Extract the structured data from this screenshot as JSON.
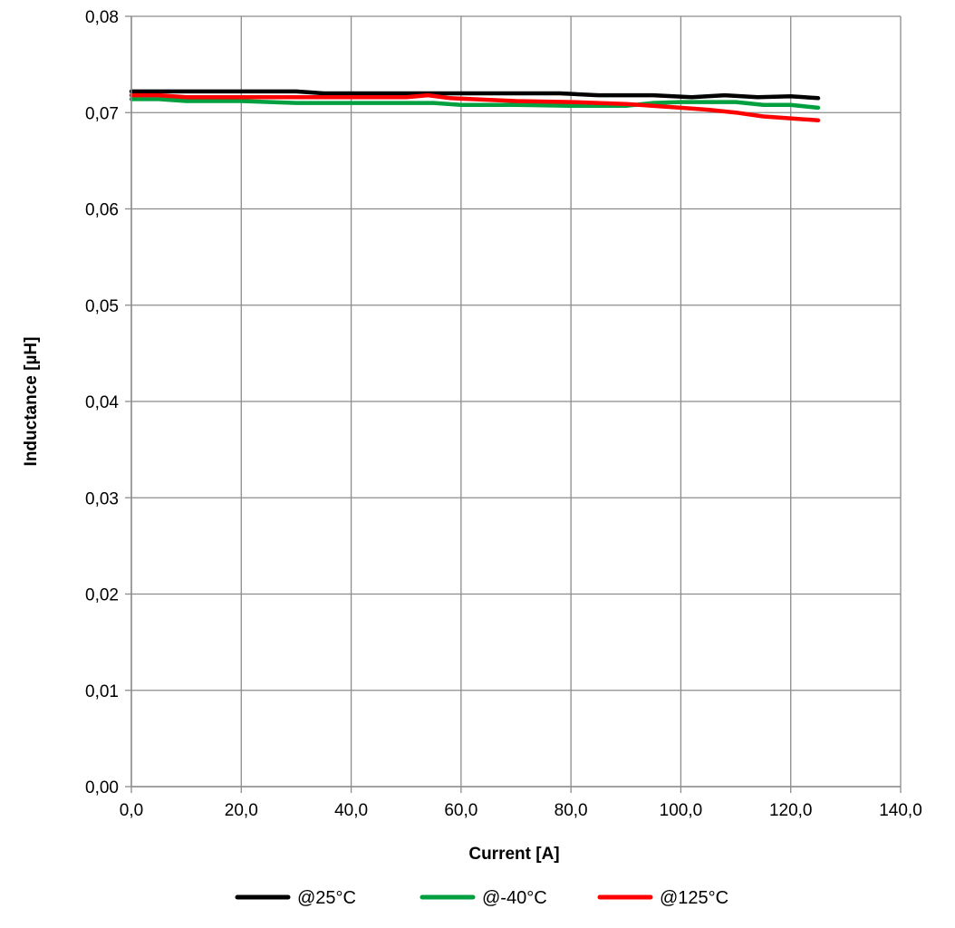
{
  "chart_data": {
    "type": "line",
    "title": "",
    "xlabel": "Current [A]",
    "ylabel": "Inductance [µH]",
    "xlim": [
      0,
      140
    ],
    "ylim": [
      0,
      0.08
    ],
    "xticks": [
      "0,0",
      "20,0",
      "40,0",
      "60,0",
      "80,0",
      "100,0",
      "120,0",
      "140,0"
    ],
    "yticks": [
      "0,00",
      "0,01",
      "0,02",
      "0,03",
      "0,04",
      "0,05",
      "0,06",
      "0,07",
      "0,08"
    ],
    "grid": true,
    "legend_position": "bottom",
    "series": [
      {
        "name": "@25°C",
        "color": "#000000",
        "x": [
          0,
          10,
          20,
          30,
          35,
          40,
          50,
          60,
          70,
          78,
          85,
          95,
          102,
          108,
          114,
          120,
          125
        ],
        "y": [
          0.0722,
          0.0722,
          0.0722,
          0.0722,
          0.072,
          0.072,
          0.072,
          0.072,
          0.072,
          0.072,
          0.0718,
          0.0718,
          0.0716,
          0.0718,
          0.0716,
          0.0717,
          0.0715
        ]
      },
      {
        "name": "@-40°C",
        "color": "#00a040",
        "x": [
          0,
          5,
          10,
          20,
          30,
          40,
          50,
          55,
          60,
          70,
          80,
          90,
          95,
          100,
          110,
          115,
          120,
          125
        ],
        "y": [
          0.0714,
          0.0714,
          0.0712,
          0.0712,
          0.071,
          0.071,
          0.071,
          0.071,
          0.0708,
          0.0708,
          0.0707,
          0.0707,
          0.071,
          0.0711,
          0.0711,
          0.0708,
          0.0708,
          0.0705
        ]
      },
      {
        "name": "@125°C",
        "color": "#ff0000",
        "x": [
          0,
          5,
          10,
          20,
          30,
          40,
          50,
          54,
          58,
          62,
          70,
          80,
          90,
          100,
          105,
          110,
          115,
          120,
          125
        ],
        "y": [
          0.0718,
          0.0718,
          0.0716,
          0.0716,
          0.0716,
          0.0716,
          0.0716,
          0.0718,
          0.0715,
          0.0714,
          0.0712,
          0.0711,
          0.0709,
          0.0705,
          0.0703,
          0.07,
          0.0696,
          0.0694,
          0.0692
        ]
      }
    ]
  }
}
